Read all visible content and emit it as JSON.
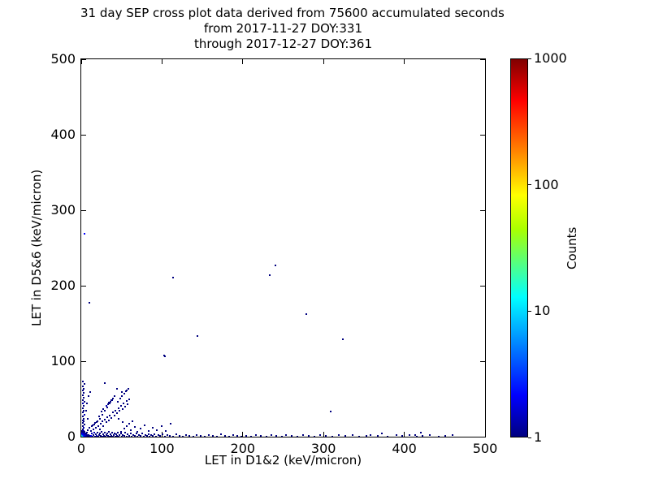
{
  "title": {
    "line1": "31 day SEP cross plot data derived from 75600 accumulated seconds",
    "line2": "from 2017-11-27 DOY:331",
    "line3": "through 2017-12-27 DOY:361"
  },
  "axes": {
    "xlabel": "LET in D1&2 (keV/micron)",
    "ylabel": "LET in D5&6 (keV/micron)",
    "x_ticks": [
      "0",
      "100",
      "200",
      "300",
      "400",
      "500"
    ],
    "y_ticks": [
      "0",
      "100",
      "200",
      "300",
      "400",
      "500"
    ],
    "x_range": [
      0,
      500
    ],
    "y_range": [
      0,
      500
    ]
  },
  "colorbar": {
    "label": "Counts",
    "ticks": [
      "1",
      "10",
      "100",
      "1000"
    ],
    "scale": "log",
    "range": [
      1,
      1000
    ],
    "colormap": "jet",
    "gradient_stops": [
      "#000080 0%",
      "#0000ff 11%",
      "#00ffff 37%",
      "#aaff00 55%",
      "#ffff00 64%",
      "#ff8000 76%",
      "#ff0000 89%",
      "#800000 100%"
    ]
  },
  "chart_data": {
    "type": "scatter",
    "title": "31 day SEP cross plot data derived from 75600 accumulated seconds from 2017-11-27 DOY:331 through 2017-12-27 DOY:361",
    "xlabel": "LET in D1&2 (keV/micron)",
    "ylabel": "LET in D5&6 (keV/micron)",
    "xlim": [
      0,
      500
    ],
    "ylim": [
      0,
      500
    ],
    "grid": false,
    "color_scale": {
      "label": "Counts",
      "type": "log",
      "min": 1,
      "max": 1000,
      "colormap": "jet"
    },
    "color_levels": {
      "c1": {
        "color": "#000080",
        "counts": 1
      },
      "c2": {
        "color": "#0000b4",
        "counts": 2
      },
      "c3": {
        "color": "#0000ff",
        "counts": 3
      },
      "c4": {
        "color": "#0064ff",
        "counts": 5
      },
      "c10": {
        "color": "#00d0ff",
        "counts": 10
      },
      "c20": {
        "color": "#00ffb0",
        "counts": 20
      },
      "c50": {
        "color": "#44ff00",
        "counts": 50
      },
      "c100": {
        "color": "#c8ff00",
        "counts": 100
      }
    },
    "points": [
      [
        0.5,
        0.5,
        "c100"
      ],
      [
        1.5,
        0.5,
        "c50"
      ],
      [
        0.5,
        1.5,
        "c50"
      ],
      [
        1.5,
        1.5,
        "c20"
      ],
      [
        2.5,
        0.5,
        "c10"
      ],
      [
        0.5,
        2.5,
        "c10"
      ],
      [
        2.5,
        1.5,
        "c10"
      ],
      [
        1.5,
        2.5,
        "c10"
      ],
      [
        3.5,
        0.5,
        "c10"
      ],
      [
        0.5,
        3.5,
        "c10"
      ],
      [
        2.5,
        2.5,
        "c4"
      ],
      [
        3.5,
        1.5,
        "c4"
      ],
      [
        1.5,
        3.5,
        "c4"
      ],
      [
        4.5,
        0.5,
        "c4"
      ],
      [
        0.5,
        4.5,
        "c4"
      ],
      [
        3.5,
        2.5,
        "c3"
      ],
      [
        2.5,
        3.5,
        "c3"
      ],
      [
        4.5,
        1.5,
        "c3"
      ],
      [
        1.5,
        4.5,
        "c3"
      ],
      [
        5.5,
        0.5,
        "c3"
      ],
      [
        0.5,
        5.5,
        "c3"
      ],
      [
        3.5,
        3.5,
        "c3"
      ],
      [
        5,
        2,
        "c2"
      ],
      [
        2,
        5,
        "c2"
      ],
      [
        6,
        1,
        "c2"
      ],
      [
        1,
        6,
        "c2"
      ],
      [
        4.5,
        3,
        "c2"
      ],
      [
        3,
        4.5,
        "c2"
      ],
      [
        7,
        0.5,
        "c2"
      ],
      [
        0.5,
        7,
        "c2"
      ],
      [
        6,
        3,
        "c1"
      ],
      [
        3,
        6,
        "c1"
      ],
      [
        5,
        4,
        "c2"
      ],
      [
        4,
        5,
        "c2"
      ],
      [
        8,
        1,
        "c1"
      ],
      [
        1,
        8,
        "c1"
      ],
      [
        7,
        2,
        "c1"
      ],
      [
        2,
        7,
        "c1"
      ],
      [
        9,
        0.5,
        "c1"
      ],
      [
        0.5,
        9,
        "c1"
      ],
      [
        5,
        5,
        "c1"
      ],
      [
        6,
        6,
        "c1"
      ],
      [
        8,
        3,
        "c1"
      ],
      [
        3,
        8,
        "c1"
      ],
      [
        9,
        2,
        "c1"
      ],
      [
        2,
        9,
        "c1"
      ],
      [
        10,
        1,
        "c2"
      ],
      [
        1,
        10,
        "c2"
      ],
      [
        1,
        11,
        "c1"
      ],
      [
        2,
        13,
        "c2"
      ],
      [
        1,
        15,
        "c1"
      ],
      [
        3,
        17,
        "c1"
      ],
      [
        1,
        19,
        "c1"
      ],
      [
        2,
        21,
        "c1"
      ],
      [
        1,
        23,
        "c1"
      ],
      [
        2,
        25,
        "c1"
      ],
      [
        1,
        28,
        "c1"
      ],
      [
        3,
        30,
        "c2"
      ],
      [
        1,
        33,
        "c1"
      ],
      [
        2,
        36,
        "c1"
      ],
      [
        1,
        39,
        "c1"
      ],
      [
        2,
        42,
        "c1"
      ],
      [
        1,
        45,
        "c2"
      ],
      [
        3,
        47,
        "c1"
      ],
      [
        1,
        50,
        "c1"
      ],
      [
        2,
        53,
        "c1"
      ],
      [
        1,
        56,
        "c1"
      ],
      [
        2,
        59,
        "c1"
      ],
      [
        1,
        62,
        "c1"
      ],
      [
        2,
        65,
        "c1"
      ],
      [
        1,
        68,
        "c1"
      ],
      [
        3,
        71,
        "c1"
      ],
      [
        1,
        74,
        "c1"
      ],
      [
        11,
        2,
        "c3"
      ],
      [
        12,
        5,
        "c2"
      ],
      [
        13,
        1,
        "c2"
      ],
      [
        14,
        3,
        "c1"
      ],
      [
        15,
        6,
        "c2"
      ],
      [
        16,
        1,
        "c1"
      ],
      [
        17,
        4,
        "c1"
      ],
      [
        18,
        2,
        "c2"
      ],
      [
        19,
        6,
        "c1"
      ],
      [
        20,
        1,
        "c1"
      ],
      [
        21,
        3,
        "c1"
      ],
      [
        22,
        5,
        "c1"
      ],
      [
        23,
        2,
        "c1"
      ],
      [
        24,
        7,
        "c1"
      ],
      [
        25,
        1,
        "c2"
      ],
      [
        26,
        4,
        "c1"
      ],
      [
        27,
        2,
        "c1"
      ],
      [
        28,
        6,
        "c1"
      ],
      [
        29,
        1,
        "c1"
      ],
      [
        30,
        3,
        "c1"
      ],
      [
        31,
        5,
        "c1"
      ],
      [
        32,
        2,
        "c1"
      ],
      [
        33,
        7,
        "c1"
      ],
      [
        34,
        1,
        "c1"
      ],
      [
        35,
        4,
        "c1"
      ],
      [
        36,
        2,
        "c1"
      ],
      [
        37,
        6,
        "c1"
      ],
      [
        38,
        1,
        "c1"
      ],
      [
        39,
        3,
        "c1"
      ],
      [
        40,
        5,
        "c1"
      ],
      [
        41,
        1,
        "c1"
      ],
      [
        42,
        4,
        "c1"
      ],
      [
        43,
        2,
        "c1"
      ],
      [
        44,
        6,
        "c1"
      ],
      [
        45,
        1,
        "c1"
      ],
      [
        46,
        3,
        "c1"
      ],
      [
        48,
        5,
        "c1"
      ],
      [
        49,
        1,
        "c1"
      ],
      [
        50,
        3,
        "c1"
      ],
      [
        52,
        2,
        "c1"
      ],
      [
        53,
        6,
        "c1"
      ],
      [
        55,
        1,
        "c1"
      ],
      [
        56,
        4,
        "c1"
      ],
      [
        58,
        2,
        "c1"
      ],
      [
        60,
        5,
        "c1"
      ],
      [
        61,
        1,
        "c1"
      ],
      [
        63,
        3,
        "c1"
      ],
      [
        65,
        2,
        "c1"
      ],
      [
        67,
        5,
        "c1"
      ],
      [
        68,
        1,
        "c1"
      ],
      [
        70,
        3,
        "c1"
      ],
      [
        72,
        2,
        "c1"
      ],
      [
        74,
        5,
        "c1"
      ],
      [
        76,
        1,
        "c1"
      ],
      [
        78,
        3,
        "c1"
      ],
      [
        80,
        2,
        "c1"
      ],
      [
        82,
        4,
        "c1"
      ],
      [
        84,
        1,
        "c1"
      ],
      [
        86,
        3,
        "c1"
      ],
      [
        88,
        2,
        "c1"
      ],
      [
        90,
        4,
        "c1"
      ],
      [
        92,
        1,
        "c1"
      ],
      [
        95,
        3,
        "c1"
      ],
      [
        97,
        2,
        "c1"
      ],
      [
        100,
        4,
        "c1"
      ],
      [
        103,
        1,
        "c1"
      ],
      [
        106,
        3,
        "c1"
      ],
      [
        109,
        2,
        "c1"
      ],
      [
        113,
        1,
        "c1"
      ],
      [
        117,
        4,
        "c1"
      ],
      [
        121,
        2,
        "c1"
      ],
      [
        125,
        1,
        "c1"
      ],
      [
        129,
        3,
        "c1"
      ],
      [
        133,
        2,
        "c1"
      ],
      [
        138,
        1,
        "c1"
      ],
      [
        142,
        3,
        "c1"
      ],
      [
        147,
        2,
        "c1"
      ],
      [
        152,
        1,
        "c1"
      ],
      [
        157,
        3,
        "c1"
      ],
      [
        162,
        2,
        "c1"
      ],
      [
        167,
        1,
        "c1"
      ],
      [
        172,
        4,
        "c1"
      ],
      [
        177,
        2,
        "c1"
      ],
      [
        182,
        1,
        "c1"
      ],
      [
        187,
        3,
        "c1"
      ],
      [
        192,
        2,
        "c1"
      ],
      [
        197,
        1,
        "c1"
      ],
      [
        203,
        2,
        "c1"
      ],
      [
        209,
        1,
        "c1"
      ],
      [
        215,
        3,
        "c1"
      ],
      [
        221,
        2,
        "c1"
      ],
      [
        228,
        1,
        "c1"
      ],
      [
        234,
        3,
        "c1"
      ],
      [
        240,
        2,
        "c1"
      ],
      [
        247,
        1,
        "c1"
      ],
      [
        253,
        3,
        "c1"
      ],
      [
        260,
        2,
        "c1"
      ],
      [
        267,
        1,
        "c1"
      ],
      [
        274,
        3,
        "c1"
      ],
      [
        281,
        2,
        "c1"
      ],
      [
        288,
        1,
        "c1"
      ],
      [
        295,
        3,
        "c1"
      ],
      [
        302,
        2,
        "c1"
      ],
      [
        310,
        1,
        "c1"
      ],
      [
        318,
        3,
        "c1"
      ],
      [
        326,
        2,
        "c1"
      ],
      [
        335,
        3,
        "c1"
      ],
      [
        343,
        1,
        "c1"
      ],
      [
        352,
        2,
        "c1"
      ],
      [
        357,
        3,
        "c1"
      ],
      [
        366,
        2,
        "c1"
      ],
      [
        371,
        5,
        "c1"
      ],
      [
        378,
        1,
        "c1"
      ],
      [
        389,
        3,
        "c1"
      ],
      [
        396,
        2,
        "c1"
      ],
      [
        405,
        3,
        "c1"
      ],
      [
        414,
        1,
        "c1"
      ],
      [
        422,
        2,
        "c1"
      ],
      [
        431,
        3,
        "c1"
      ],
      [
        442,
        1,
        "c1"
      ],
      [
        450,
        2,
        "c1"
      ],
      [
        459,
        3,
        "c1"
      ],
      [
        7,
        10,
        "c1"
      ],
      [
        9,
        13,
        "c1"
      ],
      [
        11,
        9,
        "c1"
      ],
      [
        12,
        15,
        "c1"
      ],
      [
        14,
        11,
        "c1"
      ],
      [
        15,
        17,
        "c1"
      ],
      [
        17,
        13,
        "c1"
      ],
      [
        18,
        20,
        "c1"
      ],
      [
        20,
        15,
        "c1"
      ],
      [
        22,
        11,
        "c1"
      ],
      [
        23,
        18,
        "c1"
      ],
      [
        25,
        21,
        "c1"
      ],
      [
        26,
        15,
        "c1"
      ],
      [
        28,
        24,
        "c1"
      ],
      [
        30,
        20,
        "c1"
      ],
      [
        31,
        27,
        "c1"
      ],
      [
        33,
        23,
        "c1"
      ],
      [
        34,
        29,
        "c1"
      ],
      [
        36,
        26,
        "c1"
      ],
      [
        38,
        33,
        "c1"
      ],
      [
        40,
        29,
        "c1"
      ],
      [
        41,
        36,
        "c1"
      ],
      [
        43,
        32,
        "c1"
      ],
      [
        45,
        39,
        "c1"
      ],
      [
        46,
        35,
        "c1"
      ],
      [
        48,
        42,
        "c1"
      ],
      [
        50,
        38,
        "c1"
      ],
      [
        51,
        45,
        "c1"
      ],
      [
        53,
        41,
        "c1"
      ],
      [
        55,
        48,
        "c1"
      ],
      [
        56,
        44,
        "c1"
      ],
      [
        58,
        51,
        "c1"
      ],
      [
        44,
        47,
        "c1"
      ],
      [
        47,
        52,
        "c1"
      ],
      [
        49,
        55,
        "c1"
      ],
      [
        52,
        58,
        "c1"
      ],
      [
        54,
        61,
        "c1"
      ],
      [
        57,
        64,
        "c1"
      ],
      [
        40,
        55,
        "c1"
      ],
      [
        37,
        50,
        "c1"
      ],
      [
        34,
        45,
        "c1"
      ],
      [
        31,
        40,
        "c1"
      ],
      [
        28,
        35,
        "c1"
      ],
      [
        25,
        30,
        "c1"
      ],
      [
        22,
        25,
        "c1"
      ],
      [
        19,
        22,
        "c1"
      ],
      [
        16,
        19,
        "c1"
      ],
      [
        13,
        16,
        "c1"
      ],
      [
        30,
        42,
        "c2"
      ],
      [
        32,
        44,
        "c1"
      ],
      [
        33,
        46,
        "c1"
      ],
      [
        35,
        47,
        "c1"
      ],
      [
        36,
        49,
        "c1"
      ],
      [
        38,
        52,
        "c1"
      ],
      [
        26,
        38,
        "c1"
      ],
      [
        24,
        34,
        "c1"
      ],
      [
        21,
        28,
        "c1"
      ],
      [
        43,
        65,
        "c1"
      ],
      [
        49,
        60,
        "c1"
      ],
      [
        55,
        62,
        "c1"
      ],
      [
        28,
        72,
        "c1"
      ],
      [
        10,
        60,
        "c1"
      ],
      [
        8,
        55,
        "c1"
      ],
      [
        6,
        45,
        "c1"
      ],
      [
        5,
        35,
        "c1"
      ],
      [
        7,
        25,
        "c1"
      ],
      [
        45,
        25,
        "c1"
      ],
      [
        50,
        20,
        "c1"
      ],
      [
        55,
        15,
        "c1"
      ],
      [
        60,
        10,
        "c1"
      ],
      [
        48,
        8,
        "c1"
      ],
      [
        52,
        12,
        "c1"
      ],
      [
        58,
        18,
        "c1"
      ],
      [
        62,
        22,
        "c1"
      ],
      [
        65,
        14,
        "c1"
      ],
      [
        68,
        8,
        "c1"
      ],
      [
        72,
        12,
        "c1"
      ],
      [
        77,
        16,
        "c1"
      ],
      [
        82,
        9,
        "c1"
      ],
      [
        88,
        13,
        "c1"
      ],
      [
        93,
        10,
        "c1"
      ],
      [
        99,
        15,
        "c1"
      ],
      [
        104,
        9,
        "c1"
      ],
      [
        110,
        18,
        "c1"
      ],
      [
        3,
        270,
        "c3"
      ],
      [
        9,
        179,
        "c1"
      ],
      [
        113,
        212,
        "c1"
      ],
      [
        232,
        215,
        "c1"
      ],
      [
        239,
        228,
        "c1"
      ],
      [
        278,
        163,
        "c1"
      ],
      [
        143,
        134,
        "c1"
      ],
      [
        323,
        130,
        "c1"
      ],
      [
        308,
        34,
        "c1"
      ],
      [
        102,
        109,
        "c1"
      ],
      [
        103,
        107,
        "c1"
      ],
      [
        412,
        3,
        "c1"
      ],
      [
        420,
        6,
        "c1"
      ]
    ]
  }
}
